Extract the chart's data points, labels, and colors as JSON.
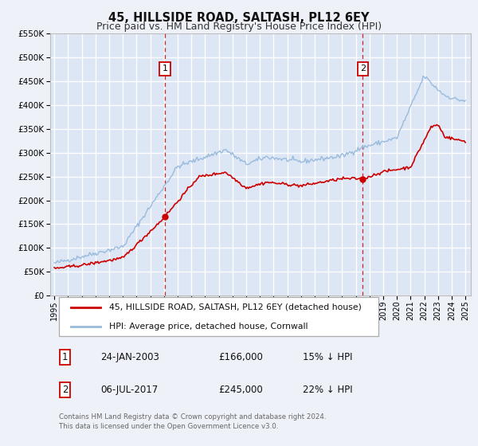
{
  "title": "45, HILLSIDE ROAD, SALTASH, PL12 6EY",
  "subtitle": "Price paid vs. HM Land Registry's House Price Index (HPI)",
  "background_color": "#eef2f8",
  "plot_bg_color": "#dde6f5",
  "grid_color": "#ffffff",
  "ylim": [
    0,
    550000
  ],
  "yticks": [
    0,
    50000,
    100000,
    150000,
    200000,
    250000,
    300000,
    350000,
    400000,
    450000,
    500000,
    550000
  ],
  "xlim_start": 1994.7,
  "xlim_end": 2025.4,
  "xtick_years": [
    1995,
    1996,
    1997,
    1998,
    1999,
    2000,
    2001,
    2002,
    2003,
    2004,
    2005,
    2006,
    2007,
    2008,
    2009,
    2010,
    2011,
    2012,
    2013,
    2014,
    2015,
    2016,
    2017,
    2018,
    2019,
    2020,
    2021,
    2022,
    2023,
    2024,
    2025
  ],
  "marker1_x": 2003.07,
  "marker1_y": 166000,
  "marker2_x": 2017.51,
  "marker2_y": 245000,
  "vline1_x": 2003.07,
  "vline2_x": 2017.51,
  "red_line_color": "#cc0000",
  "blue_line_color": "#99bbdd",
  "marker_color": "#cc0000",
  "legend_label_red": "45, HILLSIDE ROAD, SALTASH, PL12 6EY (detached house)",
  "legend_label_blue": "HPI: Average price, detached house, Cornwall",
  "table_row1": [
    "1",
    "24-JAN-2003",
    "£166,000",
    "15% ↓ HPI"
  ],
  "table_row2": [
    "2",
    "06-JUL-2017",
    "£245,000",
    "22% ↓ HPI"
  ],
  "footer_text": "Contains HM Land Registry data © Crown copyright and database right 2024.\nThis data is licensed under the Open Government Licence v3.0.",
  "title_fontsize": 10.5,
  "subtitle_fontsize": 9
}
